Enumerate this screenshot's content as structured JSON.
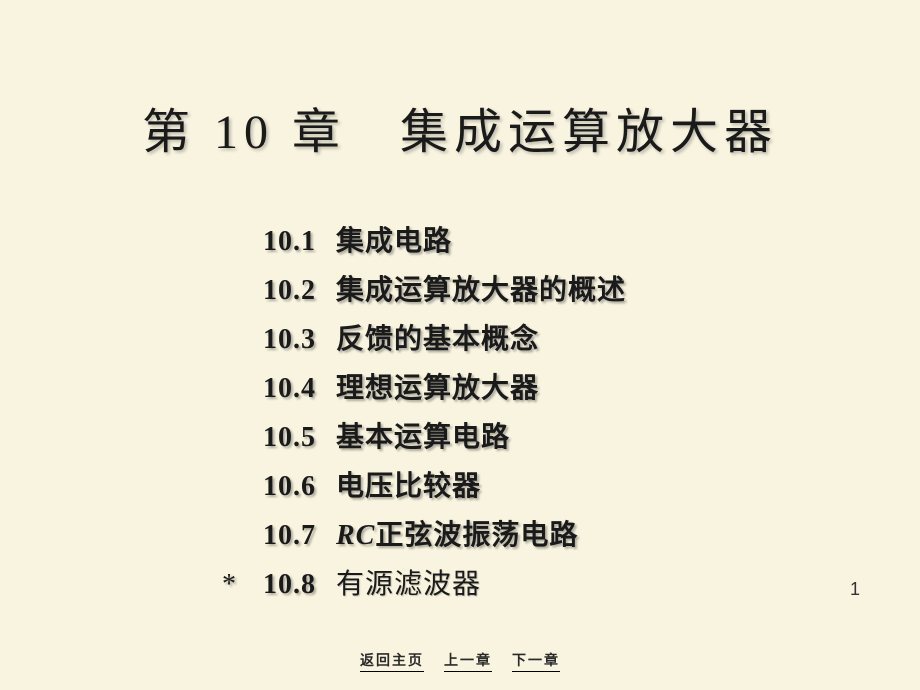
{
  "title": "第 10 章　集成运算放大器",
  "toc": [
    {
      "num": "10.1",
      "text": "集成电路",
      "star": false
    },
    {
      "num": "10.2",
      "text": "集成运算放大器的概述",
      "star": false
    },
    {
      "num": "10.3",
      "text": "反馈的基本概念",
      "star": false
    },
    {
      "num": "10.4",
      "text": "理想运算放大器",
      "star": false
    },
    {
      "num": "10.5",
      "text": "基本运算电路",
      "star": false
    },
    {
      "num": "10.6",
      "text": "电压比较器",
      "star": false
    },
    {
      "num": "10.7",
      "text_prefix": "RC",
      "text": "正弦波振荡电路",
      "star": false,
      "has_italic": true
    },
    {
      "num": "10.8",
      "text": "有源滤波器",
      "star": true
    }
  ],
  "page_number": "1",
  "nav": {
    "home": "返回主页",
    "prev": "上一章",
    "next": "下一章"
  },
  "colors": {
    "background": "#f8f4df",
    "text": "#1a1a1a",
    "nav_text": "#2a2a2a"
  }
}
